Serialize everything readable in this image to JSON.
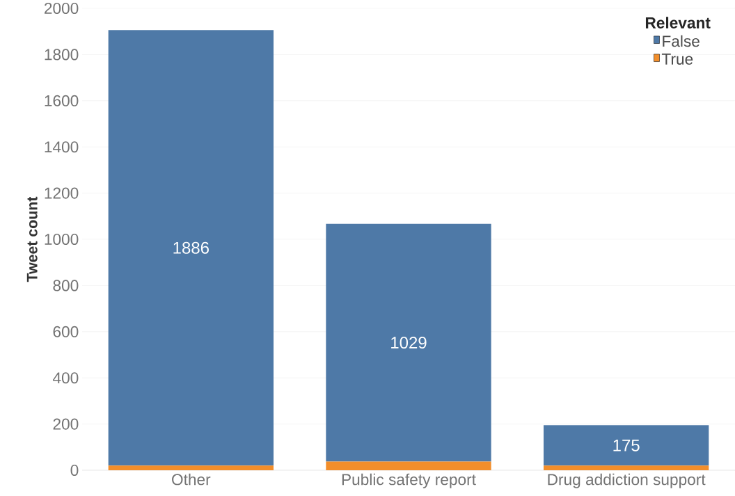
{
  "chart_data": {
    "type": "bar",
    "stacked": true,
    "ylabel": "Tweet count",
    "legend_title": "Relevant",
    "legend": "top right",
    "grid": "y",
    "categories": [
      "Other",
      "Public safety report",
      "Drug addiction support"
    ],
    "series": [
      {
        "name": "True",
        "color": "#f28e2b",
        "values": [
          20,
          38,
          20
        ]
      },
      {
        "name": "False",
        "color": "#4e79a7",
        "values": [
          1886,
          1029,
          175
        ],
        "value_labels": [
          "1886",
          "1029",
          "175"
        ]
      }
    ],
    "ylim": [
      0,
      2000
    ],
    "yticks": [
      0,
      200,
      400,
      600,
      800,
      1000,
      1200,
      1400,
      1600,
      1800,
      2000
    ]
  }
}
